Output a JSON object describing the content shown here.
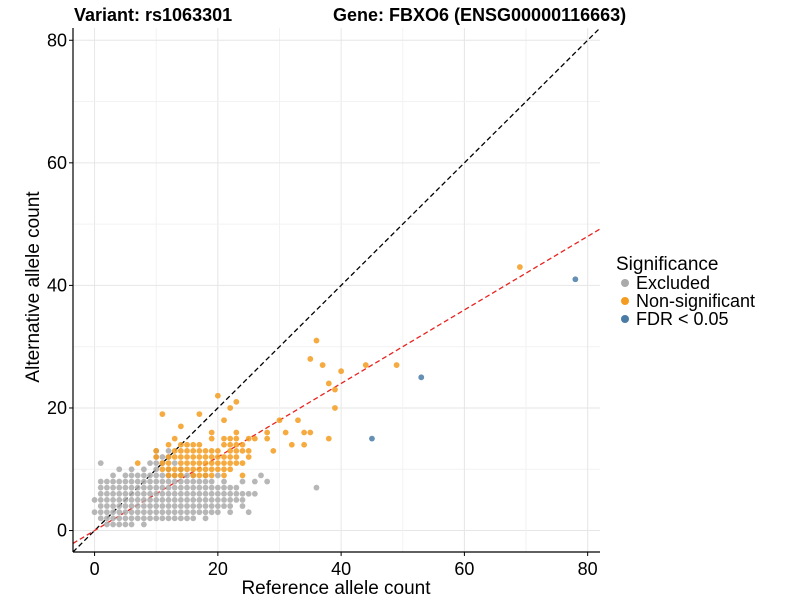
{
  "chart_data": {
    "type": "scatter",
    "title_left": "Variant: rs1063301",
    "title_right": "Gene: FBXO6 (ENSG00000116663)",
    "xlabel": "Reference allele count",
    "ylabel": "Alternative allele count",
    "xlim": [
      -3.5,
      82
    ],
    "ylim": [
      -3.5,
      82
    ],
    "x_ticks": [
      0,
      20,
      40,
      60,
      80
    ],
    "y_ticks": [
      0,
      20,
      40,
      60,
      80
    ],
    "grid": true,
    "legend": {
      "title": "Significance",
      "position": "right",
      "entries": [
        {
          "name": "Excluded",
          "color": "#aaaaaa"
        },
        {
          "name": "Non-significant",
          "color": "#f39c1f"
        },
        {
          "name": "FDR < 0.05",
          "color": "#4a7ba6"
        }
      ]
    },
    "reference_lines": [
      {
        "name": "identity",
        "slope": 1,
        "intercept": 0,
        "color": "#000000",
        "dash": true
      },
      {
        "name": "fit",
        "slope": 0.6,
        "intercept": 0,
        "color": "#e8231f",
        "dash": true
      }
    ],
    "series": [
      {
        "name": "Excluded",
        "color": "#aaaaaa",
        "points": [
          [
            0,
            5
          ],
          [
            0,
            3
          ],
          [
            1,
            11
          ],
          [
            1,
            8
          ],
          [
            1,
            7
          ],
          [
            1,
            6
          ],
          [
            1,
            5
          ],
          [
            1,
            4
          ],
          [
            1,
            3
          ],
          [
            1,
            2
          ],
          [
            2,
            8
          ],
          [
            2,
            7
          ],
          [
            2,
            6
          ],
          [
            2,
            5
          ],
          [
            2,
            4
          ],
          [
            2,
            3
          ],
          [
            2,
            2
          ],
          [
            2,
            1
          ],
          [
            3,
            9
          ],
          [
            3,
            8
          ],
          [
            3,
            7
          ],
          [
            3,
            6
          ],
          [
            3,
            5
          ],
          [
            3,
            4
          ],
          [
            3,
            3
          ],
          [
            3,
            2
          ],
          [
            3,
            1
          ],
          [
            4,
            10
          ],
          [
            4,
            8
          ],
          [
            4,
            7
          ],
          [
            4,
            6
          ],
          [
            4,
            5
          ],
          [
            4,
            4
          ],
          [
            4,
            3
          ],
          [
            4,
            2
          ],
          [
            4,
            1
          ],
          [
            5,
            9
          ],
          [
            5,
            8
          ],
          [
            5,
            7
          ],
          [
            5,
            6
          ],
          [
            5,
            5
          ],
          [
            5,
            4
          ],
          [
            5,
            3
          ],
          [
            5,
            2
          ],
          [
            5,
            1
          ],
          [
            6,
            10
          ],
          [
            6,
            9
          ],
          [
            6,
            8
          ],
          [
            6,
            7
          ],
          [
            6,
            6
          ],
          [
            6,
            5
          ],
          [
            6,
            4
          ],
          [
            6,
            3
          ],
          [
            6,
            2
          ],
          [
            6,
            1
          ],
          [
            7,
            9
          ],
          [
            7,
            8
          ],
          [
            7,
            7
          ],
          [
            7,
            6
          ],
          [
            7,
            5
          ],
          [
            7,
            4
          ],
          [
            7,
            3
          ],
          [
            7,
            2
          ],
          [
            8,
            10
          ],
          [
            8,
            9
          ],
          [
            8,
            8
          ],
          [
            8,
            7
          ],
          [
            8,
            6
          ],
          [
            8,
            5
          ],
          [
            8,
            4
          ],
          [
            8,
            3
          ],
          [
            8,
            2
          ],
          [
            8,
            1
          ],
          [
            9,
            11
          ],
          [
            9,
            9
          ],
          [
            9,
            8
          ],
          [
            9,
            7
          ],
          [
            9,
            6
          ],
          [
            9,
            5
          ],
          [
            9,
            4
          ],
          [
            9,
            3
          ],
          [
            9,
            2
          ],
          [
            10,
            13
          ],
          [
            10,
            12
          ],
          [
            10,
            11
          ],
          [
            10,
            10
          ],
          [
            10,
            9
          ],
          [
            10,
            8
          ],
          [
            10,
            7
          ],
          [
            10,
            6
          ],
          [
            10,
            5
          ],
          [
            10,
            4
          ],
          [
            10,
            3
          ],
          [
            10,
            2
          ],
          [
            11,
            12
          ],
          [
            11,
            11
          ],
          [
            11,
            9
          ],
          [
            11,
            8
          ],
          [
            11,
            7
          ],
          [
            11,
            6
          ],
          [
            11,
            5
          ],
          [
            11,
            4
          ],
          [
            11,
            3
          ],
          [
            11,
            2
          ],
          [
            12,
            13
          ],
          [
            12,
            12
          ],
          [
            12,
            10
          ],
          [
            12,
            9
          ],
          [
            12,
            8
          ],
          [
            12,
            7
          ],
          [
            12,
            6
          ],
          [
            12,
            5
          ],
          [
            12,
            4
          ],
          [
            12,
            3
          ],
          [
            12,
            2
          ],
          [
            13,
            11
          ],
          [
            13,
            9
          ],
          [
            13,
            8
          ],
          [
            13,
            7
          ],
          [
            13,
            6
          ],
          [
            13,
            5
          ],
          [
            13,
            4
          ],
          [
            13,
            3
          ],
          [
            13,
            2
          ],
          [
            14,
            10
          ],
          [
            14,
            9
          ],
          [
            14,
            8
          ],
          [
            14,
            7
          ],
          [
            14,
            6
          ],
          [
            14,
            5
          ],
          [
            14,
            4
          ],
          [
            14,
            3
          ],
          [
            14,
            2
          ],
          [
            15,
            9
          ],
          [
            15,
            8
          ],
          [
            15,
            7
          ],
          [
            15,
            6
          ],
          [
            15,
            5
          ],
          [
            15,
            4
          ],
          [
            15,
            3
          ],
          [
            15,
            2
          ],
          [
            16,
            9
          ],
          [
            16,
            8
          ],
          [
            16,
            7
          ],
          [
            16,
            6
          ],
          [
            16,
            5
          ],
          [
            16,
            4
          ],
          [
            16,
            3
          ],
          [
            16,
            2
          ],
          [
            17,
            8
          ],
          [
            17,
            7
          ],
          [
            17,
            6
          ],
          [
            17,
            5
          ],
          [
            17,
            4
          ],
          [
            17,
            3
          ],
          [
            18,
            9
          ],
          [
            18,
            8
          ],
          [
            18,
            7
          ],
          [
            18,
            6
          ],
          [
            18,
            5
          ],
          [
            18,
            4
          ],
          [
            18,
            3
          ],
          [
            18,
            2
          ],
          [
            19,
            8
          ],
          [
            19,
            7
          ],
          [
            19,
            6
          ],
          [
            19,
            5
          ],
          [
            19,
            4
          ],
          [
            19,
            3
          ],
          [
            20,
            9
          ],
          [
            20,
            7
          ],
          [
            20,
            6
          ],
          [
            20,
            5
          ],
          [
            20,
            4
          ],
          [
            20,
            3
          ],
          [
            21,
            8
          ],
          [
            21,
            7
          ],
          [
            21,
            6
          ],
          [
            21,
            5
          ],
          [
            21,
            4
          ],
          [
            22,
            7
          ],
          [
            22,
            6
          ],
          [
            22,
            5
          ],
          [
            22,
            4
          ],
          [
            22,
            3
          ],
          [
            23,
            7
          ],
          [
            23,
            6
          ],
          [
            23,
            5
          ],
          [
            24,
            8
          ],
          [
            24,
            6
          ],
          [
            24,
            5
          ],
          [
            24,
            4
          ],
          [
            25,
            3
          ],
          [
            25,
            6
          ],
          [
            26,
            6
          ],
          [
            26,
            8
          ],
          [
            27,
            9
          ],
          [
            28,
            8
          ],
          [
            36,
            7
          ]
        ]
      },
      {
        "name": "Non-significant",
        "color": "#f39c1f",
        "points": [
          [
            7,
            11
          ],
          [
            10,
            12
          ],
          [
            10,
            13
          ],
          [
            11,
            10
          ],
          [
            11,
            11
          ],
          [
            11,
            19
          ],
          [
            12,
            9
          ],
          [
            12,
            10
          ],
          [
            12,
            11
          ],
          [
            12,
            12
          ],
          [
            12,
            14
          ],
          [
            13,
            9
          ],
          [
            13,
            10
          ],
          [
            13,
            12
          ],
          [
            13,
            13
          ],
          [
            13,
            15
          ],
          [
            14,
            9
          ],
          [
            14,
            10
          ],
          [
            14,
            11
          ],
          [
            14,
            12
          ],
          [
            14,
            13
          ],
          [
            14,
            14
          ],
          [
            14,
            17
          ],
          [
            15,
            10
          ],
          [
            15,
            11
          ],
          [
            15,
            12
          ],
          [
            15,
            13
          ],
          [
            15,
            14
          ],
          [
            16,
            9
          ],
          [
            16,
            10
          ],
          [
            16,
            11
          ],
          [
            16,
            12
          ],
          [
            16,
            13
          ],
          [
            16,
            14
          ],
          [
            17,
            9
          ],
          [
            17,
            10
          ],
          [
            17,
            11
          ],
          [
            17,
            12
          ],
          [
            17,
            13
          ],
          [
            17,
            14
          ],
          [
            17,
            19
          ],
          [
            18,
            9
          ],
          [
            18,
            10
          ],
          [
            18,
            11
          ],
          [
            18,
            12
          ],
          [
            18,
            13
          ],
          [
            19,
            9
          ],
          [
            19,
            10
          ],
          [
            19,
            11
          ],
          [
            19,
            12
          ],
          [
            19,
            13
          ],
          [
            19,
            15
          ],
          [
            19,
            16
          ],
          [
            20,
            10
          ],
          [
            20,
            11
          ],
          [
            20,
            12
          ],
          [
            20,
            13
          ],
          [
            20,
            22
          ],
          [
            21,
            9
          ],
          [
            21,
            10
          ],
          [
            21,
            11
          ],
          [
            21,
            12
          ],
          [
            21,
            14
          ],
          [
            21,
            15
          ],
          [
            21,
            18
          ],
          [
            22,
            10
          ],
          [
            22,
            11
          ],
          [
            22,
            12
          ],
          [
            22,
            13
          ],
          [
            22,
            14
          ],
          [
            22,
            15
          ],
          [
            22,
            20
          ],
          [
            23,
            11
          ],
          [
            23,
            12
          ],
          [
            23,
            13
          ],
          [
            23,
            14
          ],
          [
            23,
            15
          ],
          [
            23,
            16
          ],
          [
            23,
            21
          ],
          [
            24,
            9
          ],
          [
            24,
            11
          ],
          [
            24,
            13
          ],
          [
            24,
            14
          ],
          [
            25,
            12
          ],
          [
            25,
            13
          ],
          [
            25,
            15
          ],
          [
            26,
            15
          ],
          [
            28,
            15
          ],
          [
            28,
            16
          ],
          [
            29,
            13
          ],
          [
            30,
            18
          ],
          [
            31,
            16
          ],
          [
            32,
            14
          ],
          [
            33,
            18
          ],
          [
            34,
            14
          ],
          [
            34,
            16
          ],
          [
            35,
            16
          ],
          [
            35,
            28
          ],
          [
            36,
            31
          ],
          [
            37,
            27
          ],
          [
            38,
            15
          ],
          [
            38,
            24
          ],
          [
            39,
            20
          ],
          [
            39,
            23
          ],
          [
            40,
            26
          ],
          [
            44,
            27
          ],
          [
            49,
            27
          ],
          [
            69,
            43
          ]
        ]
      },
      {
        "name": "FDR < 0.05",
        "color": "#4a7ba6",
        "points": [
          [
            45,
            15
          ],
          [
            53,
            25
          ],
          [
            78,
            41
          ]
        ]
      }
    ]
  }
}
